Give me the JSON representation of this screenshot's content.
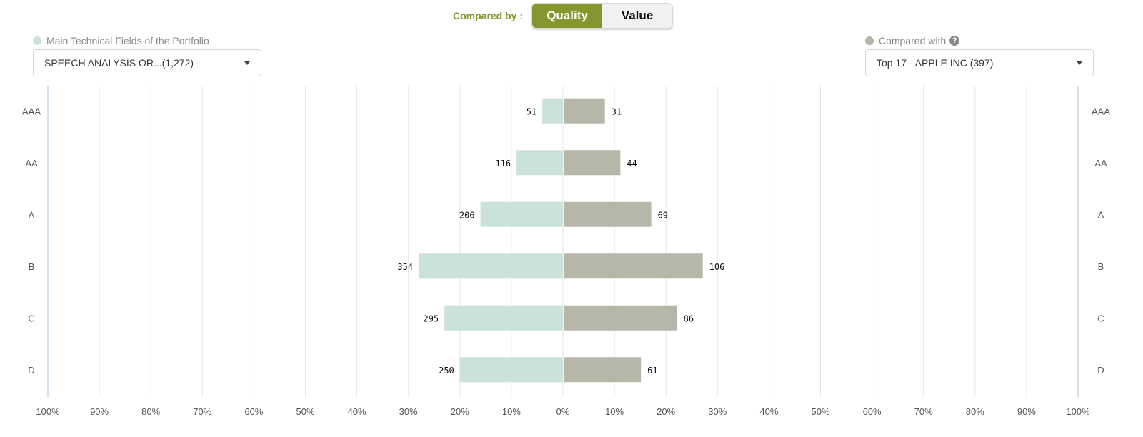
{
  "header": {
    "compared_by_label": "Compared by :",
    "toggle": {
      "quality_label": "Quality",
      "value_label": "Value",
      "active": "Quality"
    }
  },
  "left_panel": {
    "legend_label": "Main Technical Fields of the Portfolio",
    "legend_color": "#cae2d9",
    "select_value": "SPEECH ANALYSIS OR...(1,272)"
  },
  "right_panel": {
    "legend_label": "Compared with",
    "legend_color": "#b5b8a8",
    "help_icon": "question-circle-icon",
    "select_value": "Top 17 - APPLE INC (397)"
  },
  "colors": {
    "accent": "#86962f",
    "left_bar": "#cae2d9",
    "right_bar": "#b5b8a8",
    "grid": "#e4e8ec"
  },
  "chart_data": {
    "type": "bar",
    "orientation": "horizontal-butterfly",
    "categories": [
      "AAA",
      "AA",
      "A",
      "B",
      "C",
      "D"
    ],
    "series": [
      {
        "name": "Main Technical Fields of the Portfolio",
        "side": "left",
        "values_pct": [
          4,
          9,
          16,
          28,
          23,
          20
        ],
        "labels": [
          "51",
          "116",
          "206",
          "354",
          "295",
          "250"
        ]
      },
      {
        "name": "Compared with",
        "side": "right",
        "values_pct": [
          8,
          11,
          17,
          27,
          22,
          15
        ],
        "labels": [
          "31",
          "44",
          "69",
          "106",
          "86",
          "61"
        ]
      }
    ],
    "xlim": [
      -100,
      100
    ],
    "x_ticks": [
      "100%",
      "90%",
      "80%",
      "70%",
      "60%",
      "50%",
      "40%",
      "30%",
      "20%",
      "10%",
      "0%",
      "10%",
      "20%",
      "30%",
      "40%",
      "50%",
      "60%",
      "70%",
      "80%",
      "90%",
      "100%"
    ],
    "grid": true
  }
}
